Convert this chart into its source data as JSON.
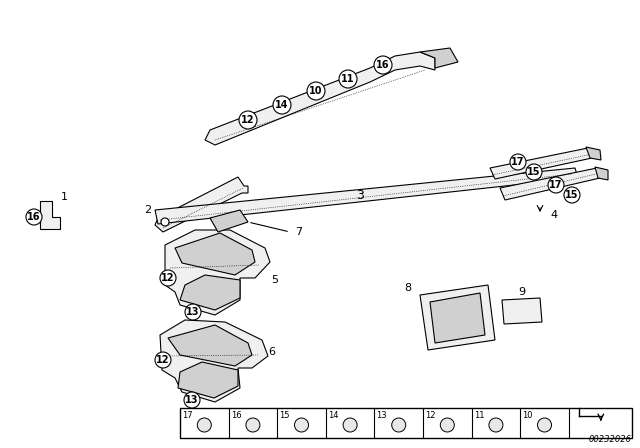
{
  "bg_color": "#ffffff",
  "fig_width": 6.4,
  "fig_height": 4.48,
  "dpi": 100,
  "part_number": "00232026",
  "line_color": "#000000",
  "shape_fill": "#f0f0f0",
  "shape_stroke": "#000000",
  "shape_fill_dark": "#d0d0d0"
}
